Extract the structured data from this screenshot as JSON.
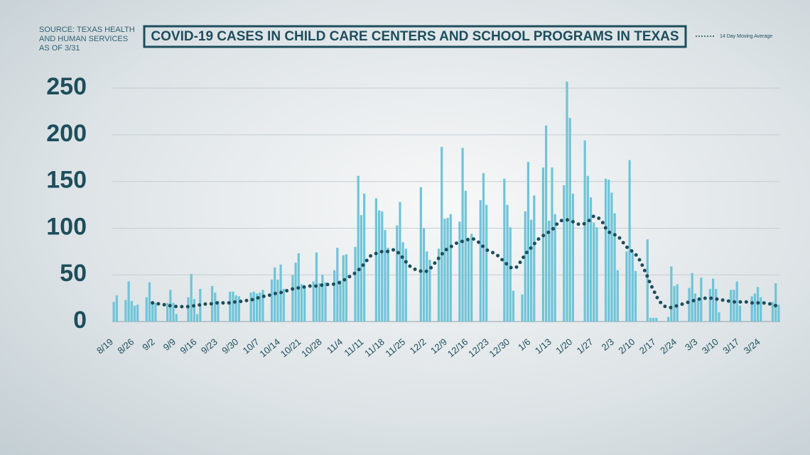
{
  "chart_data": {
    "type": "bar",
    "title": "COVID-19 CASES IN CHILD CARE CENTERS AND SCHOOL PROGRAMS IN TEXAS",
    "source": [
      "SOURCE: TEXAS HEALTH",
      "AND HUMAN SERVICES",
      "AS OF 3/31"
    ],
    "categories": [
      "8/19",
      null,
      null,
      null,
      null,
      null,
      null,
      "8/26",
      null,
      null,
      null,
      null,
      null,
      null,
      "9/2",
      null,
      null,
      null,
      null,
      null,
      null,
      "9/9",
      null,
      null,
      null,
      null,
      null,
      null,
      "9/16",
      null,
      null,
      null,
      null,
      null,
      null,
      "9/23",
      null,
      null,
      null,
      null,
      null,
      null,
      "9/30",
      null,
      null,
      null,
      null,
      null,
      null,
      "10/7",
      null,
      null,
      null,
      null,
      null,
      null,
      "10/14",
      null,
      null,
      null,
      null,
      null,
      null,
      "10/21",
      null,
      null,
      null,
      null,
      null,
      null,
      "10/28",
      null,
      null,
      null,
      null,
      null,
      null,
      "11/4",
      null,
      null,
      null,
      null,
      null,
      null,
      "11/11",
      null,
      null,
      null,
      null,
      null,
      null,
      "11/18",
      null,
      null,
      null,
      null,
      null,
      null,
      "11/25",
      null,
      null,
      null,
      null,
      null,
      null,
      "12/2",
      null,
      null,
      null,
      null,
      null,
      null,
      "12/9",
      null,
      null,
      null,
      null,
      null,
      null,
      "12/16",
      null,
      null,
      null,
      null,
      null,
      null,
      "12/23",
      null,
      null,
      null,
      null,
      null,
      null,
      "12/30",
      null,
      null,
      null,
      null,
      null,
      null,
      "1/6",
      null,
      null,
      null,
      null,
      null,
      null,
      "1/13",
      null,
      null,
      null,
      null,
      null,
      null,
      "1/20",
      null,
      null,
      null,
      null,
      null,
      null,
      "1/27",
      null,
      null,
      null,
      null,
      null,
      null,
      "2/3",
      null,
      null,
      null,
      null,
      null,
      null,
      "2/10",
      null,
      null,
      null,
      null,
      null,
      null,
      "2/17",
      null,
      null,
      null,
      null,
      null,
      null,
      "2/24",
      null,
      null,
      null,
      null,
      null,
      null,
      "3/3",
      null,
      null,
      null,
      null,
      null,
      null,
      "3/10",
      null,
      null,
      null,
      null,
      null,
      null,
      "3/17",
      null,
      null,
      null,
      null,
      null,
      null,
      "3/24",
      null,
      null,
      null,
      null,
      null,
      null
    ],
    "values": [
      21,
      28,
      0,
      0,
      23,
      43,
      22,
      17,
      18,
      0,
      0,
      26,
      42,
      22,
      20,
      0,
      0,
      0,
      20,
      34,
      20,
      8,
      0,
      0,
      0,
      26,
      51,
      24,
      8,
      35,
      0,
      0,
      0,
      38,
      31,
      22,
      0,
      0,
      0,
      32,
      32,
      28,
      27,
      0,
      0,
      0,
      31,
      32,
      30,
      31,
      34,
      0,
      0,
      45,
      58,
      45,
      61,
      35,
      0,
      0,
      50,
      63,
      73,
      40,
      38,
      0,
      0,
      43,
      74,
      41,
      50,
      42,
      0,
      0,
      55,
      79,
      44,
      71,
      72,
      0,
      0,
      80,
      156,
      114,
      137,
      0,
      0,
      0,
      132,
      119,
      118,
      98,
      79,
      0,
      0,
      103,
      128,
      85,
      78,
      0,
      0,
      0,
      0,
      144,
      100,
      75,
      66,
      0,
      0,
      78,
      187,
      110,
      111,
      115,
      0,
      0,
      107,
      186,
      140,
      88,
      94,
      0,
      0,
      130,
      159,
      125,
      0,
      0,
      0,
      0,
      0,
      153,
      125,
      101,
      33,
      0,
      0,
      29,
      118,
      171,
      109,
      135,
      0,
      0,
      165,
      210,
      108,
      165,
      115,
      0,
      0,
      146,
      257,
      218,
      137,
      0,
      0,
      0,
      194,
      156,
      133,
      106,
      101,
      0,
      0,
      153,
      152,
      138,
      116,
      55,
      0,
      0,
      75,
      173,
      74,
      54,
      0,
      0,
      0,
      88,
      4,
      4,
      4,
      0,
      0,
      0,
      5,
      59,
      38,
      40,
      0,
      0,
      0,
      36,
      52,
      30,
      24,
      47,
      0,
      0,
      35,
      46,
      35,
      10,
      0,
      0,
      0,
      34,
      34,
      43,
      17,
      0,
      0,
      0,
      27,
      30,
      37,
      26,
      0,
      0,
      0,
      21,
      41,
      18
    ],
    "color": "#6fc4d8",
    "series": [
      {
        "name": "14 Day Moving Average",
        "color": "#1d4e5c",
        "values": [
          null,
          null,
          null,
          null,
          null,
          null,
          null,
          null,
          null,
          null,
          null,
          null,
          null,
          20,
          19,
          19,
          18,
          18,
          17,
          17,
          17,
          16,
          16,
          16,
          16,
          16,
          16,
          17,
          17,
          18,
          18,
          19,
          19,
          19,
          20,
          20,
          20,
          20,
          20,
          20,
          21,
          21,
          21,
          22,
          22,
          23,
          23,
          24,
          25,
          26,
          27,
          27,
          28,
          29,
          30,
          30,
          31,
          32,
          33,
          34,
          35,
          36,
          36,
          37,
          37,
          38,
          38,
          38,
          38,
          39,
          39,
          39,
          40,
          40,
          40,
          41,
          42,
          44,
          46,
          48,
          50,
          52,
          55,
          58,
          62,
          66,
          70,
          72,
          73,
          74,
          75,
          75,
          75,
          76,
          77,
          75,
          72,
          68,
          64,
          60,
          58,
          56,
          55,
          54,
          53,
          54,
          56,
          60,
          64,
          68,
          72,
          76,
          78,
          80,
          82,
          84,
          85,
          86,
          87,
          88,
          89,
          88,
          86,
          83,
          80,
          77,
          75,
          74,
          73,
          70,
          67,
          64,
          61,
          58,
          57,
          58,
          62,
          67,
          72,
          76,
          79,
          83,
          87,
          90,
          92,
          94,
          96,
          98,
          102,
          106,
          108,
          109,
          109,
          108,
          107,
          106,
          104,
          104,
          105,
          107,
          110,
          113,
          112,
          110,
          106,
          100,
          96,
          94,
          93,
          92,
          88,
          84,
          80,
          77,
          75,
          72,
          68,
          62,
          55,
          48,
          40,
          34,
          27,
          22,
          18,
          16,
          15,
          15,
          16,
          17,
          18,
          19,
          20,
          21,
          22,
          23,
          24,
          24,
          25,
          25,
          25,
          25,
          24,
          24,
          23,
          23,
          22,
          22,
          21,
          21,
          21,
          21,
          21,
          21,
          20,
          20,
          20,
          20,
          20,
          19,
          19,
          18,
          17,
          16
        ]
      }
    ],
    "ylim": [
      0,
      260
    ],
    "yticks": [
      0,
      50,
      100,
      150,
      200,
      250
    ],
    "grid": true
  }
}
